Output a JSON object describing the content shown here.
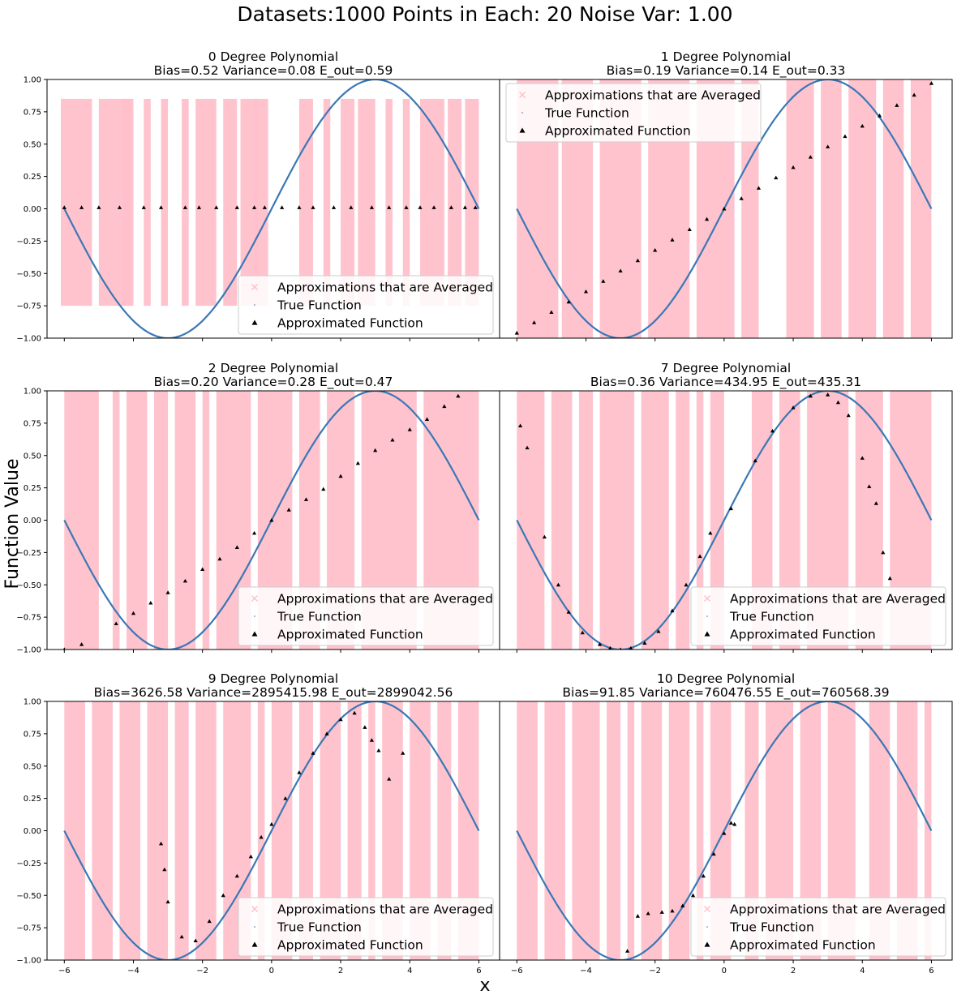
{
  "figure": {
    "suptitle": "Datasets:1000    Points in Each: 20     Noise Var: 1.00",
    "xlabel": "x",
    "ylabel": "Function Value"
  },
  "chart_data": {
    "type": "scatter",
    "grid": false,
    "xlim": [
      -6.5,
      6.6
    ],
    "ylim": [
      -1.0,
      1.0
    ],
    "x_ticks": [
      "−6",
      "−4",
      "−2",
      "0",
      "2",
      "4",
      "6"
    ],
    "y_ticks": [
      "−1.00",
      "−0.75",
      "−0.50",
      "−0.25",
      "0.00",
      "0.25",
      "0.50",
      "0.75",
      "1.00"
    ],
    "legend_entries": [
      "Approximations that are Averaged",
      "True Function",
      "Approximated Function"
    ],
    "colors": {
      "approximations": "#ffc0cb",
      "true_function": "#3a78b5",
      "approximated": "#000000"
    },
    "true_function": {
      "expression": "sin(x * pi / 6)",
      "x_range": [
        -6,
        6
      ]
    },
    "panels": [
      {
        "title": "0 Degree Polynomial",
        "stats": "Bias=0.52   Variance=0.08   E_out=0.59",
        "legend_position": "lower-right",
        "approximated_function": {
          "x": [
            -6,
            -5.5,
            -5,
            -4.4,
            -3.7,
            -3.2,
            -2.5,
            -2.1,
            -1.6,
            -1.0,
            -0.5,
            -0.2,
            0.3,
            0.8,
            1.2,
            1.8,
            2.3,
            2.9,
            3.4,
            3.9,
            4.3,
            4.7,
            5.2,
            5.6,
            5.9
          ],
          "y": [
            0.01,
            0.01,
            0.01,
            0.01,
            0.01,
            0.01,
            0.01,
            0.01,
            0.01,
            0.01,
            0.01,
            0.01,
            0.01,
            0.01,
            0.01,
            0.01,
            0.01,
            0.01,
            0.01,
            0.01,
            0.01,
            0.01,
            0.01,
            0.01,
            0.01
          ]
        }
      },
      {
        "title": "1 Degree Polynomial",
        "stats": "Bias=0.19   Variance=0.14   E_out=0.33",
        "legend_position": "upper-left",
        "approximated_function": {
          "x": [
            -6,
            -5.5,
            -5,
            -4.5,
            -4,
            -3.5,
            -3,
            -2.5,
            -2,
            -1.5,
            -1,
            -0.5,
            0,
            0.5,
            1,
            1.5,
            2,
            2.5,
            3,
            3.5,
            4,
            4.5,
            5,
            5.5,
            6
          ],
          "y": [
            -0.96,
            -0.88,
            -0.8,
            -0.72,
            -0.64,
            -0.56,
            -0.48,
            -0.4,
            -0.32,
            -0.24,
            -0.16,
            -0.08,
            0.0,
            0.08,
            0.16,
            0.24,
            0.32,
            0.4,
            0.48,
            0.56,
            0.64,
            0.72,
            0.8,
            0.88,
            0.97
          ]
        }
      },
      {
        "title": "2 Degree Polynomial",
        "stats": "Bias=0.20   Variance=0.28   E_out=0.47",
        "legend_position": "lower-right",
        "approximated_function": {
          "x": [
            -6,
            -5.5,
            -4.5,
            -4,
            -3.5,
            -3,
            -2.5,
            -2,
            -1.5,
            -1,
            -0.5,
            0,
            0.5,
            1,
            1.5,
            2,
            2.5,
            3,
            3.5,
            4,
            4.5,
            5,
            5.4
          ],
          "y": [
            -1.0,
            -0.96,
            -0.8,
            -0.72,
            -0.64,
            -0.56,
            -0.47,
            -0.38,
            -0.3,
            -0.21,
            -0.1,
            0.0,
            0.08,
            0.16,
            0.24,
            0.34,
            0.44,
            0.54,
            0.62,
            0.7,
            0.78,
            0.88,
            0.96
          ]
        }
      },
      {
        "title": "7 Degree Polynomial",
        "stats": "Bias=0.36   Variance=434.95   E_out=435.31",
        "legend_position": "lower-right",
        "approximated_function": {
          "x": [
            -5.9,
            -5.7,
            -5.2,
            -4.8,
            -4.5,
            -4.1,
            -3.6,
            -3.3,
            -3.0,
            -2.7,
            -2.3,
            -1.9,
            -1.5,
            -1.1,
            -0.7,
            -0.4,
            0.2,
            0.9,
            1.4,
            2.0,
            2.5,
            3.0,
            3.3,
            3.6,
            4.0,
            4.2,
            4.4,
            4.6,
            4.8
          ],
          "y": [
            0.73,
            0.56,
            -0.13,
            -0.5,
            -0.71,
            -0.87,
            -0.96,
            -0.99,
            -1.0,
            -0.99,
            -0.95,
            -0.86,
            -0.7,
            -0.5,
            -0.28,
            -0.1,
            0.09,
            0.46,
            0.69,
            0.87,
            0.96,
            0.97,
            0.91,
            0.81,
            0.48,
            0.26,
            0.13,
            -0.25,
            -0.45
          ]
        }
      },
      {
        "title": "9 Degree Polynomial",
        "stats": "Bias=3626.58   Variance=2895415.98   E_out=2899042.56",
        "legend_position": "lower-right",
        "approximated_function": {
          "x": [
            -3.2,
            -3.1,
            -3.0,
            -2.6,
            -2.2,
            -1.8,
            -1.4,
            -1.0,
            -0.6,
            -0.3,
            0.0,
            0.4,
            0.8,
            1.2,
            1.6,
            2.0,
            2.4,
            2.7,
            2.9,
            3.1,
            3.4,
            3.8
          ],
          "y": [
            -0.1,
            -0.3,
            -0.55,
            -0.82,
            -0.85,
            -0.7,
            -0.5,
            -0.35,
            -0.2,
            -0.05,
            0.05,
            0.25,
            0.45,
            0.6,
            0.75,
            0.86,
            0.91,
            0.8,
            0.7,
            0.62,
            0.4,
            0.6
          ]
        }
      },
      {
        "title": "10 Degree Polynomial",
        "stats": "Bias=91.85   Variance=760476.55   E_out=760568.39",
        "legend_position": "lower-right",
        "approximated_function": {
          "x": [
            -2.8,
            -2.5,
            -2.2,
            -1.8,
            -1.5,
            -1.2,
            -0.9,
            -0.6,
            -0.3,
            0.0,
            0.2,
            0.3
          ],
          "y": [
            -0.93,
            -0.66,
            -0.64,
            -0.63,
            -0.62,
            -0.58,
            -0.5,
            -0.35,
            -0.18,
            -0.02,
            0.06,
            0.05
          ]
        }
      }
    ]
  }
}
